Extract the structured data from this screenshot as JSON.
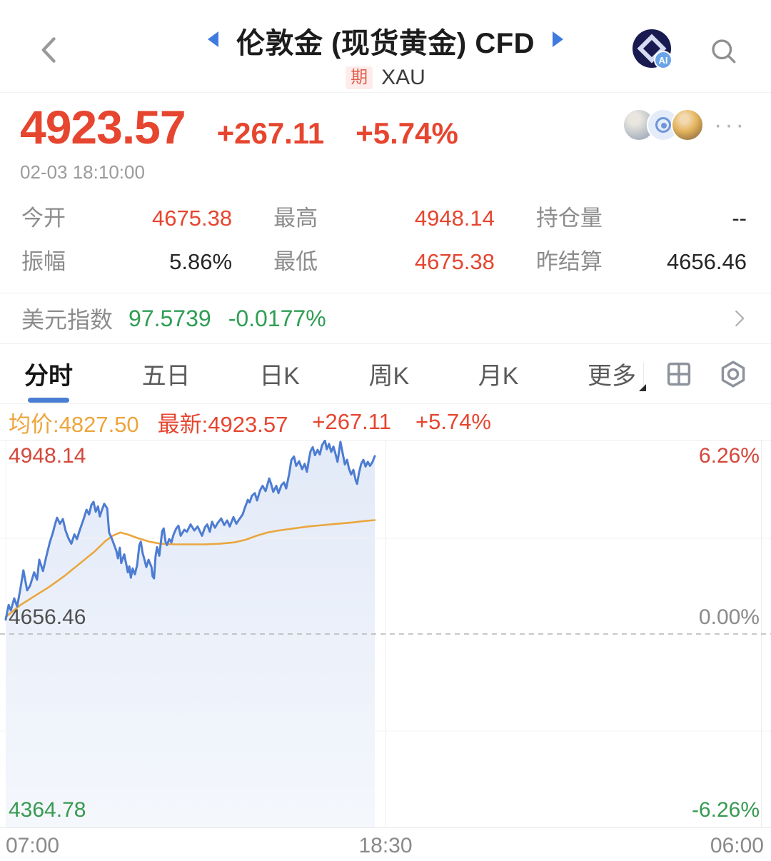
{
  "header": {
    "title": "伦敦金 (现货黄金) CFD",
    "market_badge": "期",
    "symbol": "XAU",
    "ai_label": "AI"
  },
  "quote": {
    "price": "4923.57",
    "change": "+267.11",
    "change_pct": "+5.74%",
    "timestamp": "02-03 18:10:00",
    "more_dots": "···"
  },
  "stats": {
    "cells": [
      {
        "label": "今开",
        "value": "4675.38"
      },
      {
        "label": "最高",
        "value": "4948.14"
      },
      {
        "label": "持仓量",
        "value": "--"
      },
      {
        "label": "振幅",
        "value": "5.86%"
      },
      {
        "label": "最低",
        "value": "4675.38"
      },
      {
        "label": "昨结算",
        "value": "4656.46"
      }
    ]
  },
  "usd_index": {
    "label": "美元指数",
    "value": "97.5739",
    "change_pct": "-0.0177%"
  },
  "tabs": {
    "items": [
      {
        "label": "分时",
        "active": true
      },
      {
        "label": "五日"
      },
      {
        "label": "日K"
      },
      {
        "label": "周K"
      },
      {
        "label": "月K"
      },
      {
        "label": "更多"
      }
    ]
  },
  "legend": {
    "avg": "均价:4827.50",
    "last": "最新:4923.57",
    "change": "+267.11",
    "change_pct": "+5.74%"
  },
  "chart_data": {
    "type": "area",
    "title": "分时图 (intraday minute chart)",
    "x_axis": {
      "labels": [
        "07:00",
        "18:30",
        "06:00"
      ],
      "session_hours": 23
    },
    "y_left_labels": [
      "4948.14",
      "4656.46",
      "4364.78"
    ],
    "y_right_labels": [
      "6.26%",
      "0.00%",
      "-6.26%"
    ],
    "ylim": [
      4364.78,
      4948.14
    ],
    "prev_settle": 4656.46,
    "data_end_fraction": 1.0,
    "grid": {
      "zero_line_dashed": true,
      "vline_at": "18:30"
    },
    "colors": {
      "price": "#4d7cd2",
      "avg": "#eaa63e",
      "fill_top": "rgba(77,124,210,0.16)",
      "fill_bottom": "rgba(77,124,210,0.06)"
    },
    "series": [
      {
        "name": "price",
        "points": [
          [
            0.0,
            4678
          ],
          [
            0.008,
            4700
          ],
          [
            0.014,
            4692
          ],
          [
            0.023,
            4710
          ],
          [
            0.031,
            4698
          ],
          [
            0.039,
            4722
          ],
          [
            0.048,
            4752
          ],
          [
            0.058,
            4722
          ],
          [
            0.066,
            4729
          ],
          [
            0.077,
            4749
          ],
          [
            0.085,
            4738
          ],
          [
            0.091,
            4768
          ],
          [
            0.101,
            4751
          ],
          [
            0.11,
            4773
          ],
          [
            0.12,
            4795
          ],
          [
            0.128,
            4809
          ],
          [
            0.133,
            4820
          ],
          [
            0.139,
            4831
          ],
          [
            0.147,
            4822
          ],
          [
            0.155,
            4829
          ],
          [
            0.162,
            4812
          ],
          [
            0.17,
            4800
          ],
          [
            0.178,
            4792
          ],
          [
            0.186,
            4806
          ],
          [
            0.193,
            4799
          ],
          [
            0.201,
            4813
          ],
          [
            0.211,
            4829
          ],
          [
            0.219,
            4843
          ],
          [
            0.226,
            4836
          ],
          [
            0.232,
            4850
          ],
          [
            0.238,
            4855
          ],
          [
            0.244,
            4840
          ],
          [
            0.25,
            4848
          ],
          [
            0.255,
            4833
          ],
          [
            0.261,
            4843
          ],
          [
            0.267,
            4852
          ],
          [
            0.275,
            4845
          ],
          [
            0.28,
            4809
          ],
          [
            0.288,
            4799
          ],
          [
            0.3,
            4781
          ],
          [
            0.304,
            4770
          ],
          [
            0.309,
            4786
          ],
          [
            0.313,
            4763
          ],
          [
            0.321,
            4776
          ],
          [
            0.327,
            4760
          ],
          [
            0.331,
            4749
          ],
          [
            0.335,
            4758
          ],
          [
            0.339,
            4741
          ],
          [
            0.344,
            4755
          ],
          [
            0.35,
            4746
          ],
          [
            0.356,
            4760
          ],
          [
            0.362,
            4790
          ],
          [
            0.366,
            4795
          ],
          [
            0.371,
            4778
          ],
          [
            0.375,
            4770
          ],
          [
            0.381,
            4757
          ],
          [
            0.387,
            4768
          ],
          [
            0.395,
            4757
          ],
          [
            0.398,
            4743
          ],
          [
            0.402,
            4740
          ],
          [
            0.406,
            4773
          ],
          [
            0.41,
            4787
          ],
          [
            0.416,
            4774
          ],
          [
            0.424,
            4811
          ],
          [
            0.428,
            4815
          ],
          [
            0.433,
            4795
          ],
          [
            0.437,
            4790
          ],
          [
            0.443,
            4799
          ],
          [
            0.449,
            4794
          ],
          [
            0.455,
            4806
          ],
          [
            0.462,
            4815
          ],
          [
            0.468,
            4819
          ],
          [
            0.474,
            4804
          ],
          [
            0.484,
            4813
          ],
          [
            0.491,
            4810
          ],
          [
            0.501,
            4821
          ],
          [
            0.511,
            4812
          ],
          [
            0.52,
            4818
          ],
          [
            0.532,
            4804
          ],
          [
            0.54,
            4817
          ],
          [
            0.546,
            4821
          ],
          [
            0.553,
            4810
          ],
          [
            0.559,
            4825
          ],
          [
            0.567,
            4816
          ],
          [
            0.574,
            4823
          ],
          [
            0.584,
            4830
          ],
          [
            0.592,
            4820
          ],
          [
            0.6,
            4827
          ],
          [
            0.607,
            4818
          ],
          [
            0.617,
            4832
          ],
          [
            0.625,
            4822
          ],
          [
            0.632,
            4828
          ],
          [
            0.642,
            4836
          ],
          [
            0.648,
            4846
          ],
          [
            0.656,
            4858
          ],
          [
            0.661,
            4854
          ],
          [
            0.667,
            4864
          ],
          [
            0.675,
            4868
          ],
          [
            0.681,
            4857
          ],
          [
            0.689,
            4872
          ],
          [
            0.696,
            4879
          ],
          [
            0.704,
            4871
          ],
          [
            0.714,
            4890
          ],
          [
            0.719,
            4882
          ],
          [
            0.725,
            4870
          ],
          [
            0.733,
            4879
          ],
          [
            0.739,
            4868
          ],
          [
            0.747,
            4880
          ],
          [
            0.754,
            4884
          ],
          [
            0.76,
            4875
          ],
          [
            0.768,
            4897
          ],
          [
            0.774,
            4918
          ],
          [
            0.781,
            4923
          ],
          [
            0.787,
            4909
          ],
          [
            0.795,
            4916
          ],
          [
            0.803,
            4904
          ],
          [
            0.81,
            4912
          ],
          [
            0.816,
            4900
          ],
          [
            0.822,
            4920
          ],
          [
            0.826,
            4931
          ],
          [
            0.832,
            4937
          ],
          [
            0.838,
            4925
          ],
          [
            0.845,
            4933
          ],
          [
            0.851,
            4926
          ],
          [
            0.857,
            4940
          ],
          [
            0.865,
            4947
          ],
          [
            0.87,
            4934
          ],
          [
            0.876,
            4942
          ],
          [
            0.882,
            4930
          ],
          [
            0.888,
            4938
          ],
          [
            0.894,
            4926
          ],
          [
            0.899,
            4915
          ],
          [
            0.907,
            4945
          ],
          [
            0.913,
            4928
          ],
          [
            0.919,
            4911
          ],
          [
            0.925,
            4918
          ],
          [
            0.93,
            4905
          ],
          [
            0.936,
            4896
          ],
          [
            0.942,
            4903
          ],
          [
            0.948,
            4888
          ],
          [
            0.952,
            4882
          ],
          [
            0.957,
            4898
          ],
          [
            0.963,
            4912
          ],
          [
            0.969,
            4918
          ],
          [
            0.975,
            4908
          ],
          [
            0.981,
            4915
          ],
          [
            0.987,
            4909
          ],
          [
            0.993,
            4914
          ],
          [
            1.0,
            4923.57
          ]
        ]
      },
      {
        "name": "avg",
        "points": [
          [
            0.0,
            4682
          ],
          [
            0.04,
            4700
          ],
          [
            0.08,
            4714
          ],
          [
            0.12,
            4728
          ],
          [
            0.16,
            4744
          ],
          [
            0.2,
            4762
          ],
          [
            0.24,
            4780
          ],
          [
            0.27,
            4796
          ],
          [
            0.29,
            4804
          ],
          [
            0.31,
            4809
          ],
          [
            0.33,
            4806
          ],
          [
            0.36,
            4800
          ],
          [
            0.39,
            4795
          ],
          [
            0.42,
            4792
          ],
          [
            0.46,
            4791
          ],
          [
            0.5,
            4791
          ],
          [
            0.54,
            4791
          ],
          [
            0.58,
            4792
          ],
          [
            0.62,
            4794
          ],
          [
            0.65,
            4798
          ],
          [
            0.68,
            4804
          ],
          [
            0.71,
            4809
          ],
          [
            0.74,
            4812
          ],
          [
            0.78,
            4815
          ],
          [
            0.82,
            4818
          ],
          [
            0.86,
            4820
          ],
          [
            0.9,
            4822
          ],
          [
            0.94,
            4824
          ],
          [
            0.97,
            4826
          ],
          [
            1.0,
            4827.5
          ]
        ]
      }
    ]
  }
}
